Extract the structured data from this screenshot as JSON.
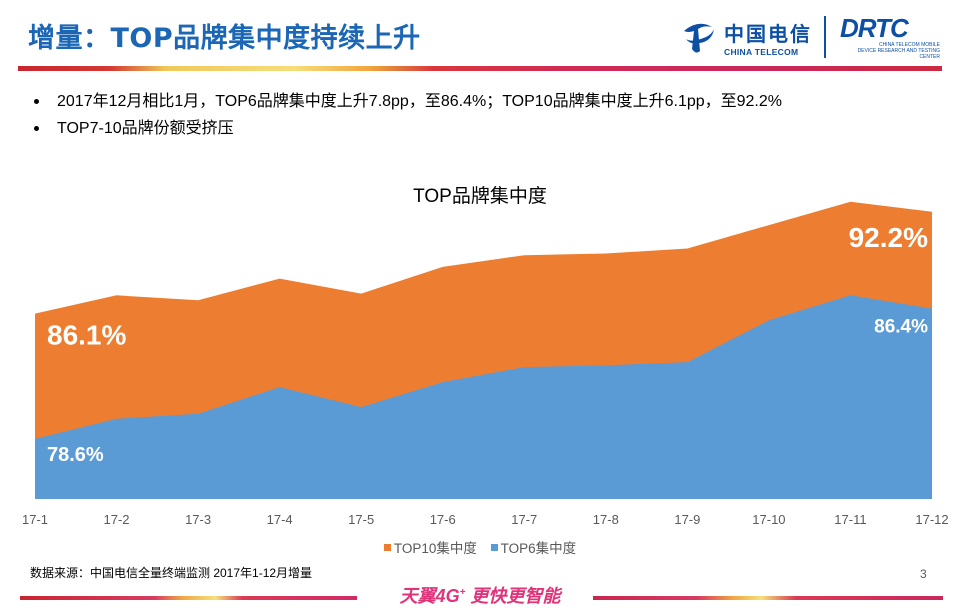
{
  "header": {
    "title": "增量：TOP品牌集中度持续上升",
    "logo_ct_cn": "中国电信",
    "logo_ct_en": "CHINA TELECOM",
    "logo_drtc": "DRTC",
    "logo_drtc_sub1": "CHINA TELECOM MOBILE",
    "logo_drtc_sub2": "DEVICE RESEARCH AND TESTING CENTER"
  },
  "bullets": [
    "2017年12月相比1月，TOP6品牌集中度上升7.8pp，至86.4%；TOP10品牌集中度上升6.1pp，至92.2%",
    "TOP7-10品牌份额受挤压"
  ],
  "chart_data": {
    "type": "area",
    "title": "TOP品牌集中度",
    "categories": [
      "17-1",
      "17-2",
      "17-3",
      "17-4",
      "17-5",
      "17-6",
      "17-7",
      "17-8",
      "17-9",
      "17-10",
      "17-11",
      "17-12"
    ],
    "series": [
      {
        "name": "TOP10集中度",
        "color": "#ed7d31",
        "values": [
          86.1,
          87.2,
          86.9,
          88.2,
          87.3,
          88.9,
          89.6,
          89.7,
          90.0,
          91.4,
          92.8,
          92.2
        ]
      },
      {
        "name": "TOP6集中度",
        "color": "#5b9bd5",
        "values": [
          78.6,
          79.8,
          80.1,
          81.7,
          80.5,
          82.0,
          82.9,
          83.0,
          83.2,
          85.7,
          87.2,
          86.4
        ]
      }
    ],
    "data_labels": [
      {
        "series": "TOP10集中度",
        "category": "17-1",
        "text": "86.1%"
      },
      {
        "series": "TOP6集中度",
        "category": "17-1",
        "text": "78.6%"
      },
      {
        "series": "TOP10集中度",
        "category": "17-12",
        "text": "92.2%"
      },
      {
        "series": "TOP6集中度",
        "category": "17-12",
        "text": "86.4%"
      }
    ],
    "xlabel": "",
    "ylabel": "",
    "ylim": [
      75,
      95
    ],
    "grid": false,
    "legend_position": "bottom"
  },
  "legend": [
    "TOP10集中度",
    "TOP6集中度"
  ],
  "footer": {
    "source": "数据来源：中国电信全量终端监测 2017年1-12月增量",
    "page_number": "3",
    "slogan_main": "天翼4G",
    "slogan_sup": "+",
    "slogan_tail": " 更快更智能"
  }
}
